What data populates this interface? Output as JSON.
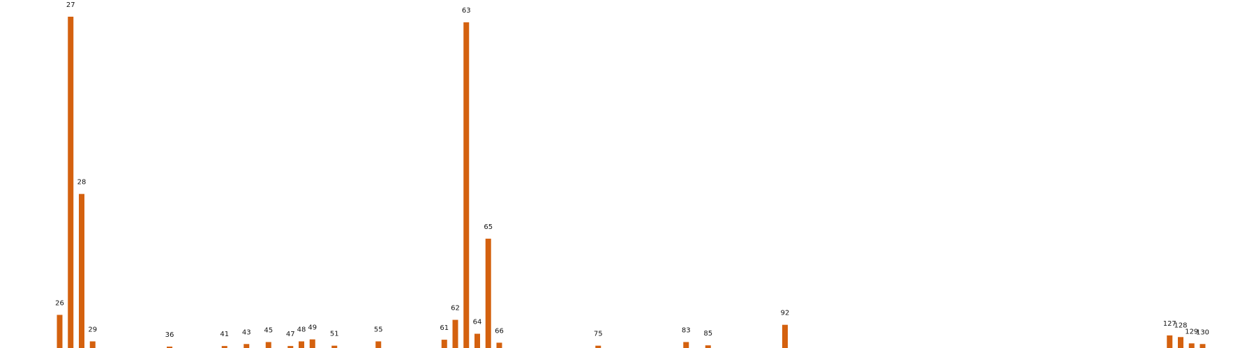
{
  "chart_data": {
    "type": "bar",
    "title": "",
    "xlabel": "",
    "ylabel": "",
    "axes_visible": false,
    "grid": false,
    "bar_color": "#d4610f",
    "x_domain": [
      20,
      133
    ],
    "ylim": [
      0,
      100
    ],
    "categories": [
      "26",
      "27",
      "28",
      "29",
      "36",
      "41",
      "43",
      "45",
      "47",
      "48",
      "49",
      "51",
      "55",
      "61",
      "62",
      "63",
      "64",
      "65",
      "66",
      "75",
      "83",
      "85",
      "92",
      "127",
      "128",
      "129",
      "130"
    ],
    "x": [
      26,
      27,
      28,
      29,
      36,
      41,
      43,
      45,
      47,
      48,
      49,
      51,
      55,
      61,
      62,
      63,
      64,
      65,
      66,
      75,
      83,
      85,
      92,
      127,
      128,
      129,
      130
    ],
    "values": [
      10,
      100,
      46.5,
      2,
      0.4,
      0.6,
      1.2,
      1.8,
      0.6,
      2,
      2.6,
      0.7,
      2,
      2.5,
      8.5,
      98.3,
      4.3,
      33,
      1.6,
      0.7,
      1.8,
      0.8,
      7,
      3.8,
      3.3,
      1.4,
      1.2
    ]
  }
}
